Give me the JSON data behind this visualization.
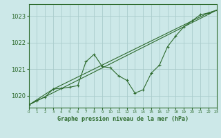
{
  "title": "Graphe pression niveau de la mer (hPa)",
  "bg_color": "#cce8e8",
  "grid_color": "#aacccc",
  "line_color": "#2d6a2d",
  "x_min": 0,
  "x_max": 23,
  "y_min": 1019.55,
  "y_max": 1023.45,
  "yticks": [
    1020,
    1021,
    1022,
    1023
  ],
  "xticks": [
    0,
    1,
    2,
    3,
    4,
    5,
    6,
    7,
    8,
    9,
    10,
    11,
    12,
    13,
    14,
    15,
    16,
    17,
    18,
    19,
    20,
    21,
    22,
    23
  ],
  "series1": {
    "x": [
      0,
      1,
      2,
      3,
      4,
      5,
      6,
      7,
      8,
      9,
      10,
      11,
      12,
      13,
      14,
      15,
      16,
      17,
      18,
      19,
      20,
      21,
      22,
      23
    ],
    "y": [
      1019.65,
      1019.82,
      1019.95,
      1020.25,
      1020.28,
      1020.32,
      1020.38,
      1021.28,
      1021.56,
      1021.1,
      1021.05,
      1020.75,
      1020.58,
      1020.1,
      1020.22,
      1020.85,
      1021.15,
      1021.85,
      1022.25,
      1022.6,
      1022.82,
      1023.05,
      1023.12,
      1023.22
    ]
  },
  "series2": {
    "x": [
      0,
      3,
      22,
      23
    ],
    "y": [
      1019.65,
      1020.25,
      1023.12,
      1023.22
    ]
  },
  "series3": {
    "x": [
      0,
      23
    ],
    "y": [
      1019.65,
      1023.22
    ]
  },
  "ytick_fontsize": 6,
  "xtick_fontsize": 4,
  "title_fontsize": 6
}
